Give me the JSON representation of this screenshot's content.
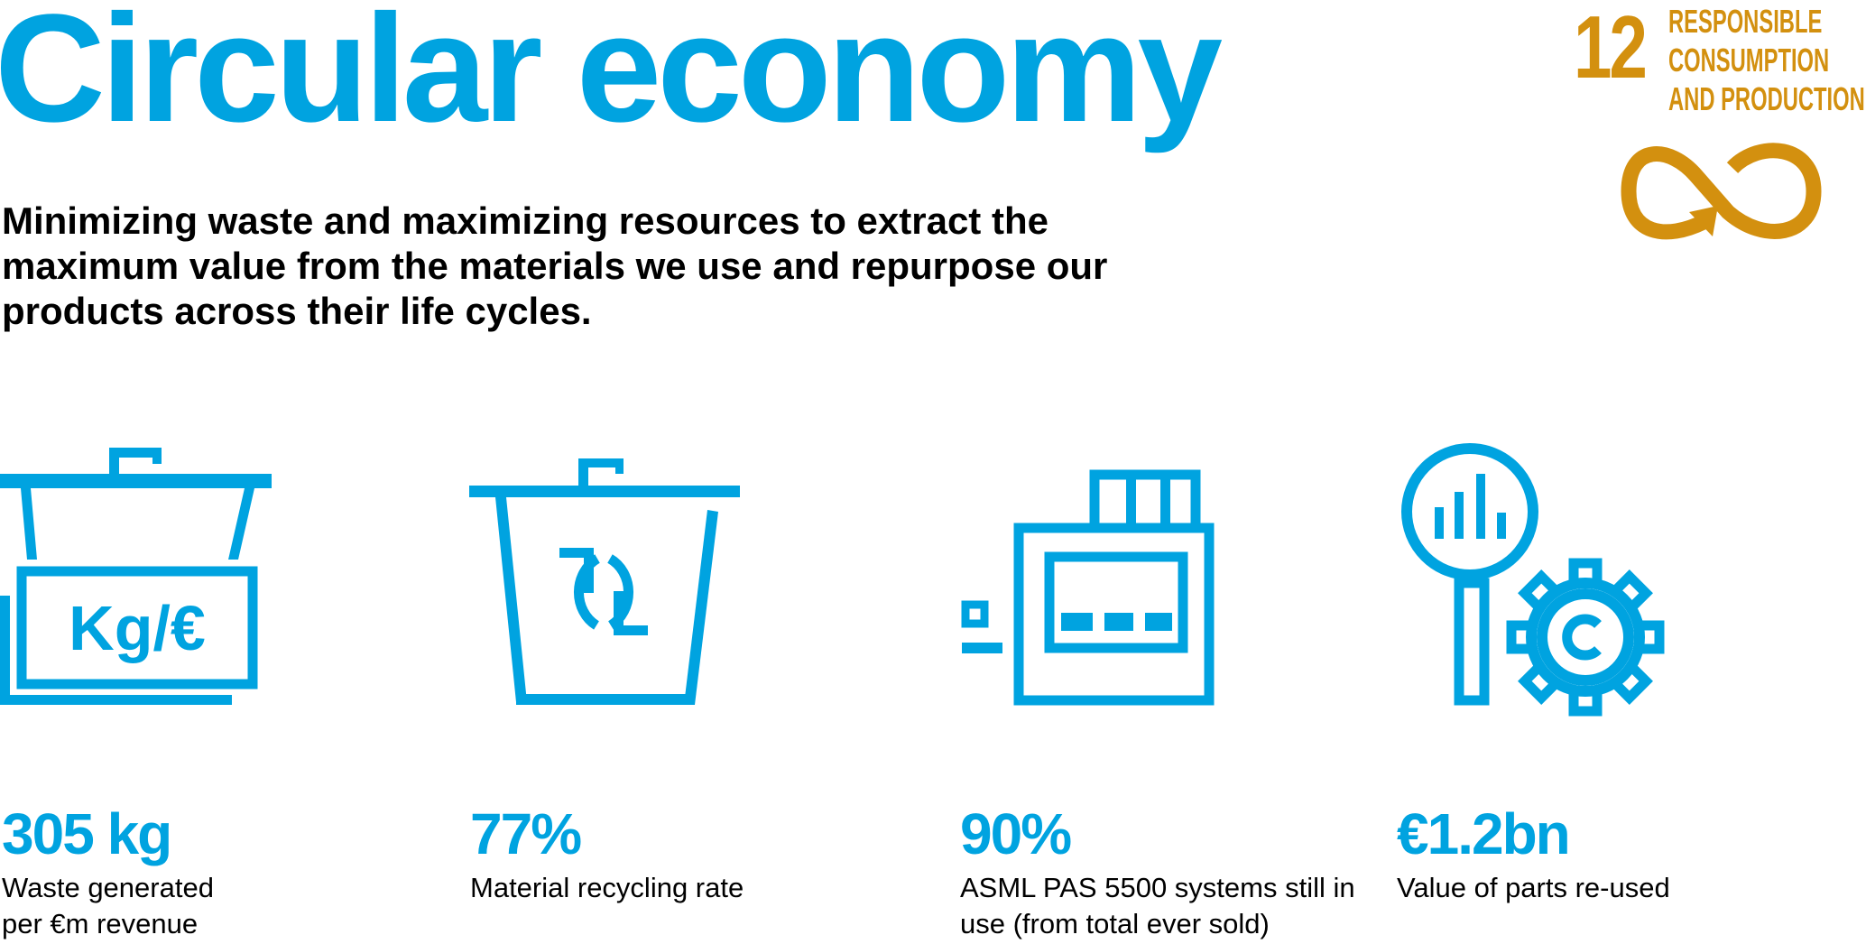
{
  "header": {
    "title": "Circular economy",
    "subtitle": "Minimizing waste and maximizing resources to extract the maximum value from the materials we use and repurpose our products across their life cycles."
  },
  "sdg": {
    "number": "12",
    "label_lines": [
      "RESPONSIBLE",
      "CONSUMPTION",
      "AND PRODUCTION"
    ],
    "icon": "infinity-arrow-icon",
    "color": "#D3900F"
  },
  "accent_color": "#00A3E0",
  "stats": [
    {
      "icon": "waste-bin-scale-icon",
      "icon_text": "Kg/€",
      "value": "305 kg",
      "description": "Waste generated per €m revenue"
    },
    {
      "icon": "recycle-bin-icon",
      "value": "77%",
      "description": "Material recycling rate"
    },
    {
      "icon": "lithography-system-icon",
      "value": "90%",
      "description": "ASML PAS 5500 systems still in use (from total ever sold)"
    },
    {
      "icon": "magnifier-gear-icon",
      "value": "€1.2bn",
      "description": "Value of parts re-used"
    }
  ]
}
